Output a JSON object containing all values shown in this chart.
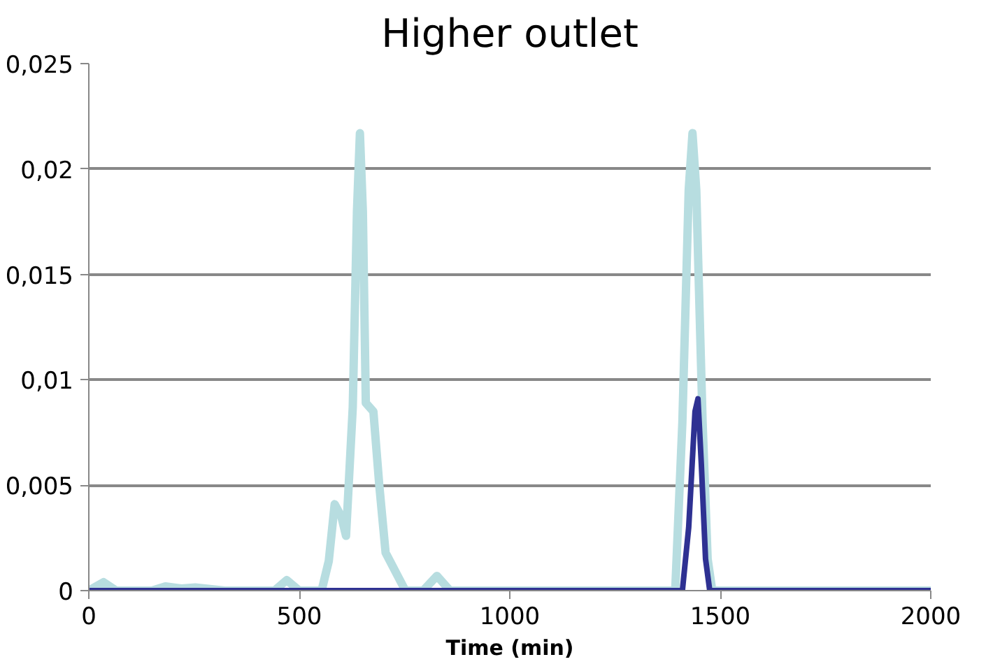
{
  "chart_data": {
    "type": "line",
    "title": "Higher outlet",
    "xlabel": "Time (min)",
    "xlim": [
      0,
      2000
    ],
    "xticks": [
      0,
      500,
      1000,
      1500,
      2000
    ],
    "ylim": [
      0,
      0.025
    ],
    "yticks": [
      {
        "value": 0,
        "label": "0"
      },
      {
        "value": 0.005,
        "label": "0,005"
      },
      {
        "value": 0.01,
        "label": "0,01"
      },
      {
        "value": 0.015,
        "label": "0,015"
      },
      {
        "value": 0.02,
        "label": "0,02"
      },
      {
        "value": 0.025,
        "label": "0,025"
      }
    ],
    "grid": "y",
    "marker": "none",
    "line_style": "solid",
    "series": [
      {
        "color": "#b7dde0",
        "x": [
          0,
          35,
          65,
          150,
          182,
          220,
          253,
          323,
          441,
          470,
          500,
          553,
          570,
          584,
          600,
          611,
          627,
          637,
          644,
          651,
          658,
          676,
          690,
          705,
          752,
          794,
          827,
          858,
          1393,
          1410,
          1425,
          1434,
          1443,
          1458,
          1470,
          1481,
          2000
        ],
        "values": [
          0,
          0.0004,
          0,
          0,
          0.0002,
          0.0001,
          0.00015,
          0,
          0,
          0.0005,
          0,
          0,
          0.0014,
          0.0041,
          0.0035,
          0.0026,
          0.0087,
          0.018,
          0.0217,
          0.018,
          0.0089,
          0.0085,
          0.005,
          0.0018,
          0,
          0,
          0.0007,
          0,
          0,
          0.008,
          0.019,
          0.0217,
          0.019,
          0.008,
          0.0015,
          0,
          0
        ]
      },
      {
        "color": "#2e3192",
        "x": [
          0,
          1410,
          1425,
          1440,
          1447,
          1455,
          1465,
          1475,
          2000
        ],
        "values": [
          0,
          0,
          0.003,
          0.0085,
          0.0091,
          0.006,
          0.0015,
          0,
          0
        ]
      }
    ]
  }
}
